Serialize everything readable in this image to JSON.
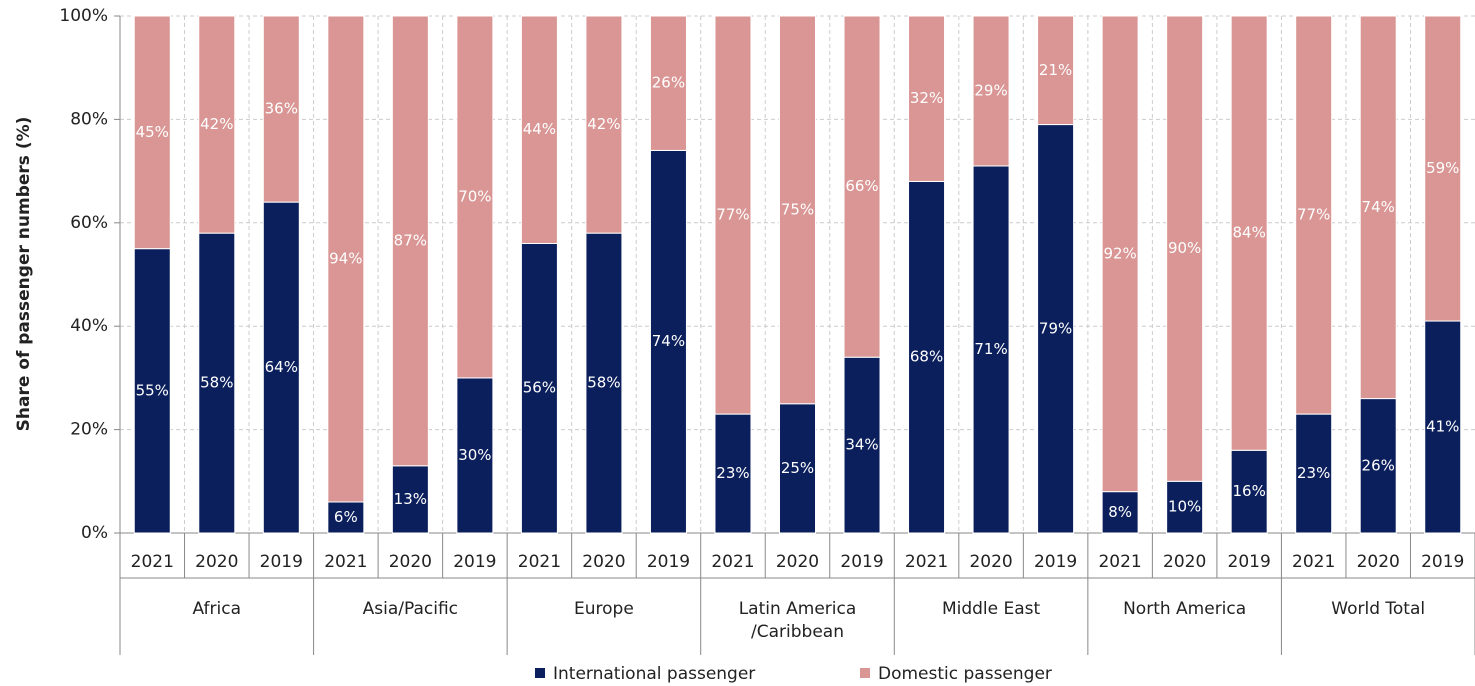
{
  "chart_data": {
    "type": "stacked-bar",
    "ylabel": "Share of passenger numbers (%)",
    "categories": [
      "2021",
      "2020",
      "2019",
      "2021",
      "2020",
      "2019",
      "2021",
      "2020",
      "2019",
      "2021",
      "2020",
      "2019",
      "2021",
      "2020",
      "2019",
      "2021",
      "2020",
      "2019",
      "2021",
      "2020",
      "2019"
    ],
    "groups": [
      "Africa",
      "Asia/Pacific",
      "Europe",
      "Latin America\n/Caribbean",
      "Middle East",
      "North America",
      "World Total"
    ],
    "series": [
      {
        "name": "International passenger",
        "color": "#0b1f5c",
        "values": [
          55,
          58,
          64,
          6,
          13,
          30,
          56,
          58,
          74,
          23,
          25,
          34,
          68,
          71,
          79,
          8,
          10,
          16,
          23,
          26,
          41
        ],
        "value_labels": [
          "55%",
          "58%",
          "64%",
          "6%",
          "13%",
          "30%",
          "56%",
          "58%",
          "74%",
          "23%",
          "25%",
          "34%",
          "68%",
          "71%",
          "79%",
          "8%",
          "10%",
          "16%",
          "23%",
          "26%",
          "41%"
        ]
      },
      {
        "name": "Domestic passenger",
        "color": "#d99694",
        "values": [
          45,
          42,
          36,
          94,
          87,
          70,
          44,
          42,
          26,
          77,
          75,
          66,
          32,
          29,
          21,
          92,
          90,
          84,
          77,
          74,
          59
        ],
        "value_labels": [
          "45%",
          "42%",
          "36%",
          "94%",
          "87%",
          "70%",
          "44%",
          "42%",
          "26%",
          "77%",
          "75%",
          "66%",
          "32%",
          "29%",
          "21%",
          "92%",
          "90%",
          "84%",
          "77%",
          "74%",
          "59%"
        ]
      }
    ],
    "ylim": [
      0,
      100
    ],
    "yticks": [
      {
        "value": 0,
        "label": "0%"
      },
      {
        "value": 20,
        "label": "20%"
      },
      {
        "value": 40,
        "label": "40%"
      },
      {
        "value": 60,
        "label": "60%"
      },
      {
        "value": 80,
        "label": "80%"
      },
      {
        "value": 100,
        "label": "100%"
      }
    ],
    "grid": true,
    "legend": "bottom"
  }
}
